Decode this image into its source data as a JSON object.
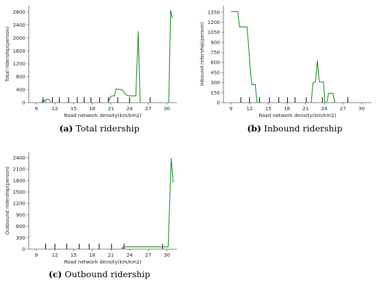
{
  "chart_data": [
    {
      "type": "line",
      "panel": "a",
      "caption_letter": "(a)",
      "caption_text": " Total ridership",
      "xlabel": "Road network density(km/km2)",
      "ylabel": "Total ridership(person)",
      "xlim": [
        7.8,
        31.6
      ],
      "ylim": [
        0,
        3000
      ],
      "xticks": [
        9,
        12,
        15,
        18,
        21,
        24,
        27,
        30
      ],
      "yticks": [
        0,
        400,
        800,
        1200,
        1600,
        2000,
        2400,
        2800
      ],
      "color": "#1a8a1a",
      "segments": [
        [
          [
            9.9,
            0
          ],
          [
            10.1,
            110
          ],
          [
            10.4,
            30
          ],
          [
            10.5,
            90
          ],
          [
            10.8,
            100
          ],
          [
            11.1,
            100
          ],
          [
            11.3,
            30
          ]
        ],
        [
          [
            20.6,
            0
          ],
          [
            20.9,
            180
          ],
          [
            21.2,
            210
          ],
          [
            21.6,
            210
          ],
          [
            21.8,
            420
          ],
          [
            22.3,
            410
          ],
          [
            22.8,
            400
          ],
          [
            23.2,
            300
          ],
          [
            23.6,
            220
          ],
          [
            24.0,
            210
          ],
          [
            25.0,
            210
          ],
          [
            25.4,
            2200
          ],
          [
            25.7,
            0
          ]
        ],
        [
          [
            30.3,
            0
          ],
          [
            30.6,
            2850
          ],
          [
            30.9,
            2600
          ]
        ]
      ],
      "rug": [
        10.1,
        11.6,
        12.7,
        14.2,
        15.6,
        16.7,
        17.8,
        19.2,
        20.6,
        22.1,
        24.0,
        27.3
      ]
    },
    {
      "type": "line",
      "panel": "b",
      "caption_letter": "(b)",
      "caption_text": " Inbound ridership",
      "xlabel": "Road network density(km/km2)",
      "ylabel": "Inbound ridership(person)",
      "xlim": [
        7.8,
        31.6
      ],
      "ylim": [
        0,
        1450
      ],
      "xticks": [
        9,
        12,
        15,
        18,
        21,
        24,
        27,
        30
      ],
      "yticks": [
        0,
        150,
        300,
        450,
        600,
        750,
        900,
        1050,
        1200,
        1350
      ],
      "color": "#1a8a1a",
      "segments": [
        [
          [
            9.0,
            1360
          ],
          [
            10.1,
            1360
          ],
          [
            10.4,
            1130
          ],
          [
            11.6,
            1130
          ],
          [
            12.2,
            400
          ],
          [
            12.4,
            270
          ],
          [
            12.9,
            270
          ],
          [
            13.2,
            0
          ]
        ],
        [
          [
            21.9,
            0
          ],
          [
            22.2,
            300
          ],
          [
            22.6,
            310
          ],
          [
            22.9,
            630
          ],
          [
            23.2,
            310
          ],
          [
            23.9,
            305
          ],
          [
            24.1,
            0
          ],
          [
            24.4,
            0
          ],
          [
            24.7,
            140
          ],
          [
            25.4,
            140
          ],
          [
            25.7,
            0
          ]
        ]
      ],
      "rug": [
        10.6,
        12.0,
        13.6,
        15.2,
        16.7,
        18.1,
        19.3,
        21.1,
        23.7,
        27.8
      ]
    },
    {
      "type": "line",
      "panel": "c",
      "caption_letter": "(c)",
      "caption_text": " Outbound ridership",
      "xlabel": "Road network density(km/km2)",
      "ylabel": "Outbound ridership(person)",
      "xlim": [
        7.8,
        31.6
      ],
      "ylim": [
        0,
        2550
      ],
      "xticks": [
        9,
        12,
        15,
        18,
        21,
        24,
        27,
        30
      ],
      "yticks": [
        0,
        300,
        600,
        900,
        1200,
        1500,
        1800,
        2100,
        2400
      ],
      "color": "#1a8a1a",
      "segments": [
        [
          [
            22.7,
            0
          ],
          [
            23.0,
            60
          ],
          [
            30.2,
            60
          ],
          [
            30.7,
            2380
          ],
          [
            31.0,
            1750
          ]
        ]
      ],
      "rug": [
        10.5,
        12.0,
        13.9,
        15.9,
        17.5,
        19.1,
        21.1,
        23.1,
        29.3
      ]
    }
  ]
}
